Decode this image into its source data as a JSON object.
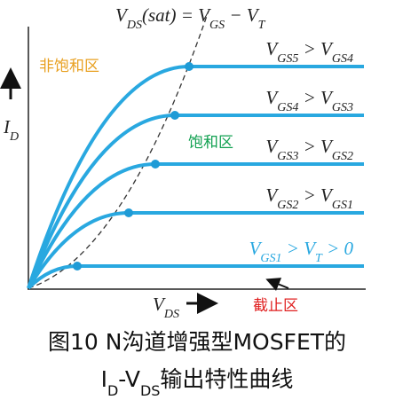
{
  "labels": {
    "sat": [
      "V",
      "DS",
      "(sat) = V",
      "GS",
      " − V",
      "T"
    ],
    "curves": [
      [
        "V",
        "GS5",
        " > V",
        "GS4"
      ],
      [
        "V",
        "GS4",
        " > V",
        "GS3"
      ],
      [
        "V",
        "GS3",
        " > V",
        "GS2"
      ],
      [
        "V",
        "GS2",
        " > V",
        "GS1"
      ],
      [
        "V",
        "GS1",
        " > V",
        "T",
        " > 0"
      ]
    ],
    "y_axis": [
      "I",
      "D"
    ],
    "x_axis": [
      "V",
      "DS"
    ]
  },
  "regions": {
    "linear": "非饱和区",
    "saturation": "饱和区",
    "cutoff": "截止区"
  },
  "caption": {
    "line1": "图10 N沟道增强型MOSFET的",
    "line2": [
      "I",
      "D",
      "-V",
      "DS",
      "输出特性曲线"
    ]
  }
}
